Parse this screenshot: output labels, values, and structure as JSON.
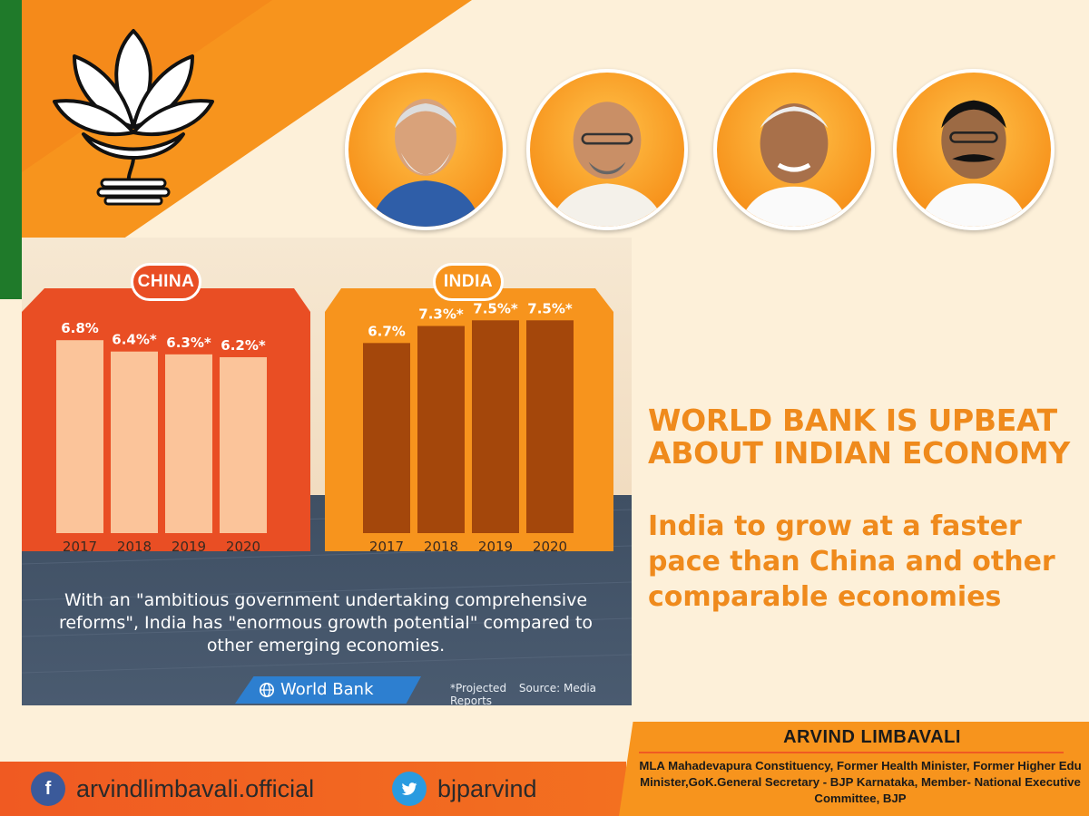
{
  "chart_data": [
    {
      "type": "bar",
      "title": "CHINA",
      "categories": [
        "2017",
        "2018",
        "2019",
        "2020"
      ],
      "values": [
        6.8,
        6.4,
        6.3,
        6.2
      ],
      "labels": [
        "6.8%",
        "6.4%*",
        "6.3%*",
        "6.2%*"
      ],
      "ylim": [
        0,
        8.5
      ],
      "color": "#fbc49a"
    },
    {
      "type": "bar",
      "title": "INDIA",
      "categories": [
        "2017",
        "2018",
        "2019",
        "2020"
      ],
      "values": [
        6.7,
        7.3,
        7.5,
        7.5
      ],
      "labels": [
        "6.7%",
        "7.3%*",
        "7.5%*",
        "7.5%*"
      ],
      "ylim": [
        0,
        8.5
      ],
      "color": "#a4470b"
    }
  ],
  "quote": "With an \"ambitious government undertaking comprehensive reforms\", India has \"enormous growth potential\" compared to other emerging economies.",
  "source_badge": "World Bank",
  "footnote_projected": "*Projected",
  "footnote_source": "Source: Media Reports",
  "headline": "WORLD BANK IS UPBEAT ABOUT INDIAN ECONOMY",
  "subheadline": "India to grow at a faster pace than China and other comparable economies",
  "signature": {
    "name": "ARVIND LIMBAVALI",
    "description": "MLA Mahadevapura Constituency, Former Health Minister, Former Higher Edu Minister,GoK.General Secretary - BJP Karnataka, Member- National Executive Committee, BJP"
  },
  "social": {
    "facebook_icon": "facebook-icon",
    "facebook_handle": "arvindlimbavali.official",
    "twitter_icon": "twitter-icon",
    "twitter_handle": "bjparvind"
  },
  "colors": {
    "saffron": "#f7941d",
    "orange_red": "#e94e24",
    "green": "#1f7a2a",
    "headline": "#ef8a1c"
  }
}
